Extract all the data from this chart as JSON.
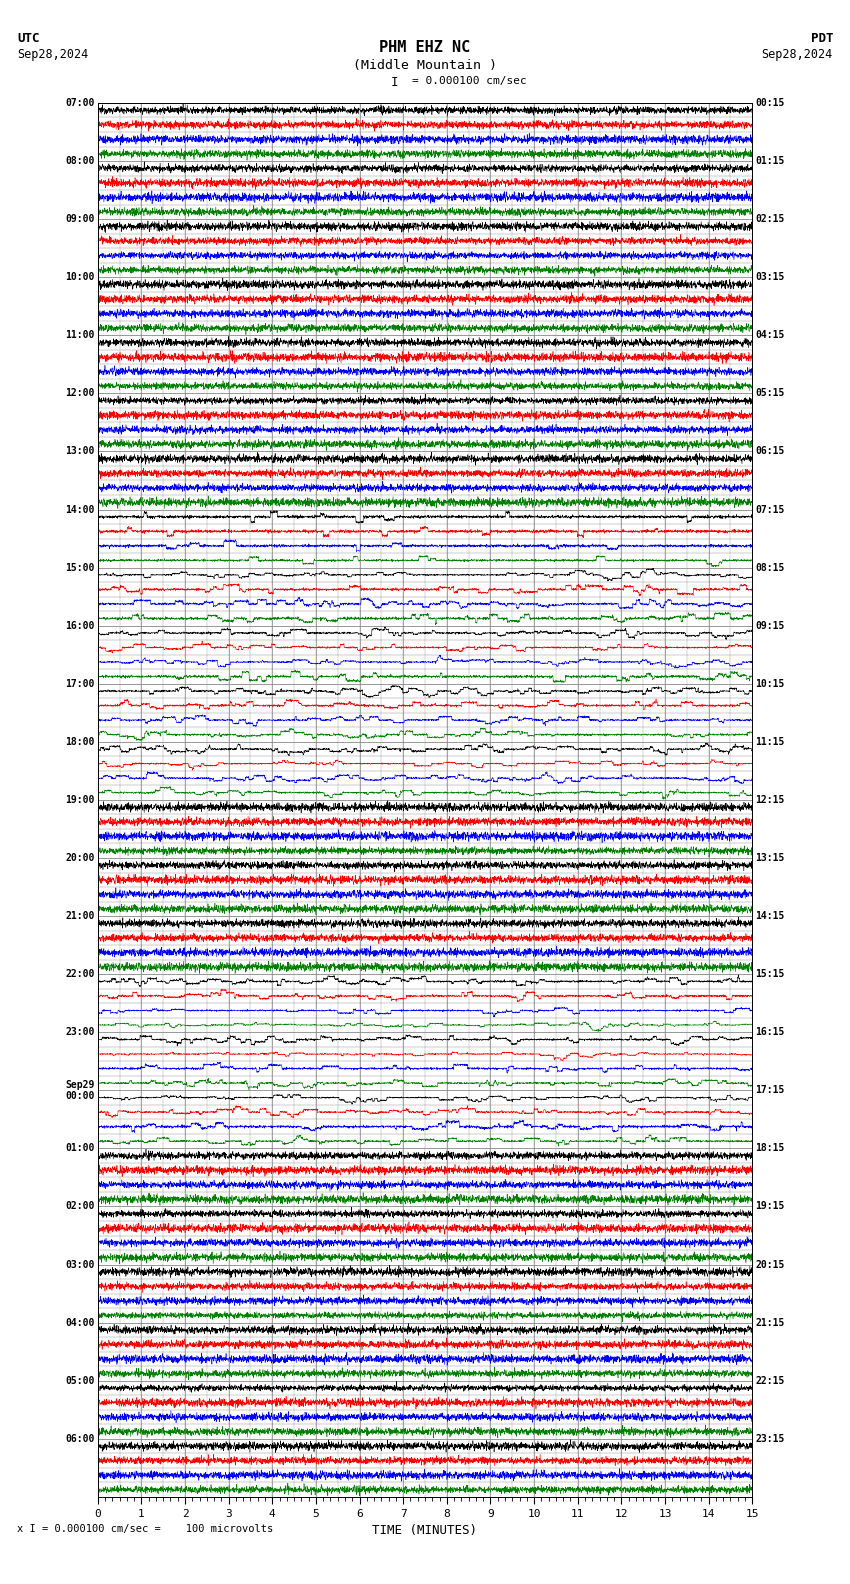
{
  "title_line1": "PHM EHZ NC",
  "title_line2": "(Middle Mountain )",
  "scale_label": "I = 0.000100 cm/sec",
  "utc_label": "UTC",
  "pdt_label": "PDT",
  "date_left": "Sep28,2024",
  "date_right": "Sep28,2024",
  "xlabel": "TIME (MINUTES)",
  "bottom_label": "x I = 0.000100 cm/sec =    100 microvolts",
  "time_minutes": 15,
  "bg_color": "#ffffff",
  "grid_color": "#888888",
  "colors": [
    "black",
    "red",
    "blue",
    "green"
  ],
  "seed": 12345,
  "left_times": [
    "07:00",
    "08:00",
    "09:00",
    "10:00",
    "11:00",
    "12:00",
    "13:00",
    "14:00",
    "15:00",
    "16:00",
    "17:00",
    "18:00",
    "19:00",
    "20:00",
    "21:00",
    "22:00",
    "23:00",
    "Sep29\n00:00",
    "01:00",
    "02:00",
    "03:00",
    "04:00",
    "05:00",
    "06:00"
  ],
  "right_times": [
    "00:15",
    "01:15",
    "02:15",
    "03:15",
    "04:15",
    "05:15",
    "06:15",
    "07:15",
    "08:15",
    "09:15",
    "10:15",
    "11:15",
    "12:15",
    "13:15",
    "14:15",
    "15:15",
    "16:15",
    "17:15",
    "18:15",
    "19:15",
    "20:15",
    "21:15",
    "22:15",
    "23:15"
  ],
  "activity_by_hour": [
    0.04,
    0.04,
    0.04,
    0.04,
    0.04,
    0.04,
    0.04,
    0.8,
    2.5,
    3.5,
    4.0,
    3.0,
    0.6,
    0.5,
    0.5,
    2.0,
    2.5,
    1.5,
    0.4,
    0.3,
    0.3,
    0.3,
    0.3,
    0.3
  ],
  "spike_activity_by_hour": [
    false,
    false,
    false,
    false,
    false,
    false,
    false,
    true,
    true,
    true,
    true,
    true,
    false,
    false,
    false,
    true,
    true,
    true,
    false,
    false,
    false,
    false,
    false,
    false
  ]
}
